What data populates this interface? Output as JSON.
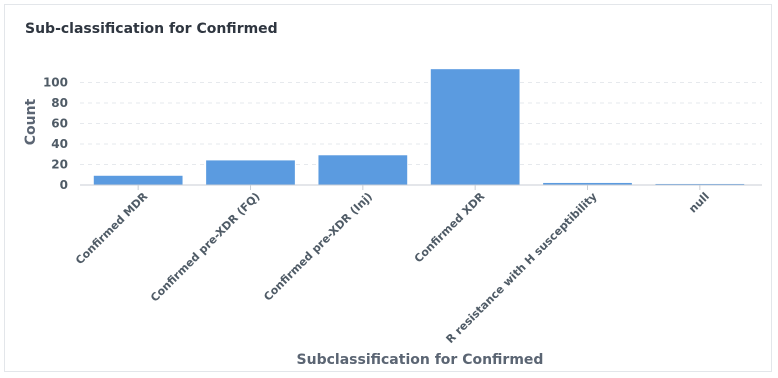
{
  "title": "Sub-classification for Confirmed",
  "chart_data": {
    "type": "bar",
    "title": "Sub-classification for Confirmed",
    "xlabel": "Subclassification for Confirmed",
    "ylabel": "Count",
    "categories": [
      "Confirmed MDR",
      "Confirmed pre-XDR (FQ)",
      "Confirmed pre-XDR (Inj)",
      "Confirmed XDR",
      "R resistance with H susceptibility",
      "null"
    ],
    "values": [
      9,
      24,
      29,
      113,
      2,
      1
    ],
    "yticks": [
      0,
      20,
      40,
      60,
      80,
      100
    ],
    "ylim": [
      0,
      120
    ],
    "grid": true,
    "bar_color": "#5b9be0"
  }
}
